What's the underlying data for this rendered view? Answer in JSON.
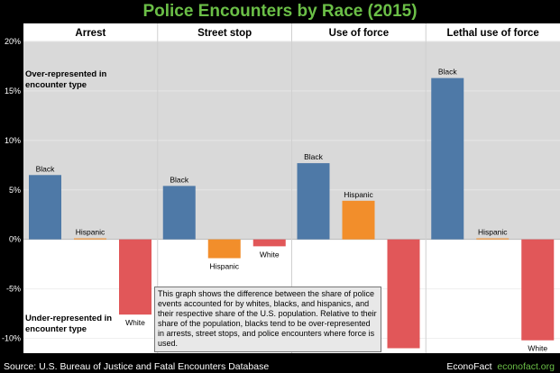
{
  "title": "Police Encounters by Race (2015)",
  "source": "Source: U.S. Bureau of Justice and Fatal Encounters Database",
  "brand": {
    "name": "EconoFact",
    "url": "econofact.org"
  },
  "note": "This graph shows the difference between the share of police events accounted for by whites, blacks, and hispanics, and their respective share of the U.S. population. Relative to their share of the population, blacks tend to be over-represented in arrests, street stops, and police encounters where force is used.",
  "region_labels": {
    "over": [
      "Over-represented in",
      "encounter type"
    ],
    "under": [
      "Under-represented in",
      "encounter type"
    ]
  },
  "colors": {
    "title": "#6BBF47",
    "Black": "#4E79A7",
    "Hispanic": "#F28E2B",
    "White": "#E15759",
    "over_bg": "#D9D9D9",
    "under_bg": "#FFFFFF"
  },
  "chart_data": {
    "type": "bar",
    "title": "Police Encounters by Race (2015)",
    "ylim": [
      -11.5,
      20
    ],
    "yticks": [
      -10,
      -5,
      0,
      5,
      10,
      15,
      20
    ],
    "ytick_labels": [
      "-10%",
      "-5%",
      "0%",
      "5%",
      "10%",
      "15%",
      "20%"
    ],
    "categories": [
      "Black",
      "Hispanic",
      "White"
    ],
    "panels": [
      {
        "name": "Arrest",
        "values": [
          6.5,
          0.1,
          -7.6
        ]
      },
      {
        "name": "Street stop",
        "values": [
          5.4,
          -1.9,
          -0.7
        ]
      },
      {
        "name": "Use of force",
        "values": [
          7.7,
          3.9,
          -11.0
        ]
      },
      {
        "name": "Lethal use of force",
        "values": [
          16.3,
          0.1,
          -10.2
        ]
      }
    ]
  }
}
